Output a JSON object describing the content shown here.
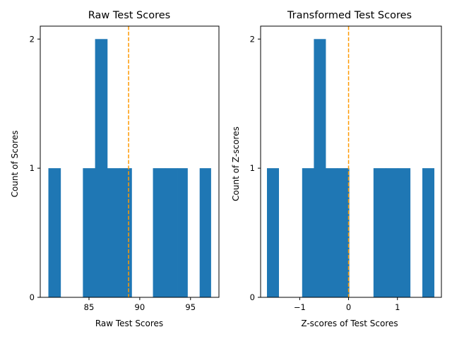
{
  "chart_data": [
    {
      "type": "bar",
      "title": "Raw Test Scores",
      "xlabel": "Raw Test Scores",
      "ylabel": "Count of Scores",
      "xlim": [
        80.2,
        97.8
      ],
      "ylim": [
        0,
        2.1
      ],
      "xticks": [
        85,
        90,
        95
      ],
      "xtick_labels": [
        "85",
        "90",
        "95"
      ],
      "yticks": [
        0,
        1,
        2
      ],
      "ytick_labels": [
        "0",
        "1",
        "2"
      ],
      "bin_edges": [
        81.0,
        82.2,
        83.4,
        84.4,
        85.6,
        86.8,
        88.0,
        89.2,
        90.4,
        91.3,
        92.5,
        93.7,
        94.7,
        95.9,
        97.0
      ],
      "counts": [
        1,
        0,
        0,
        1,
        2,
        1,
        1,
        0,
        0,
        1,
        1,
        1,
        0,
        1
      ],
      "bar_color": "#1f77b4",
      "mean_line": {
        "x": 88.9,
        "color": "#ff9900",
        "style": "dashed"
      },
      "grid": false
    },
    {
      "type": "bar",
      "title": "Transformed Test Scores",
      "xlabel": "Z-scores of Test Scores",
      "ylabel": "Count of Z-scores",
      "xlim": [
        -1.8,
        1.9
      ],
      "ylim": [
        0,
        2.1
      ],
      "xticks": [
        -1,
        0,
        1
      ],
      "xtick_labels": [
        "−1",
        "0",
        "1"
      ],
      "yticks": [
        0,
        1,
        2
      ],
      "ytick_labels": [
        "0",
        "1",
        "2"
      ],
      "bin_edges": [
        -1.67,
        -1.43,
        -1.19,
        -0.95,
        -0.71,
        -0.47,
        -0.23,
        0.01,
        0.26,
        0.51,
        0.76,
        1.01,
        1.26,
        1.51,
        1.75
      ],
      "counts": [
        1,
        0,
        0,
        1,
        2,
        1,
        1,
        0,
        0,
        1,
        1,
        1,
        0,
        1
      ],
      "bar_color": "#1f77b4",
      "mean_line": {
        "x": 0.0,
        "color": "#ff9900",
        "style": "dashed"
      },
      "grid": false
    }
  ]
}
